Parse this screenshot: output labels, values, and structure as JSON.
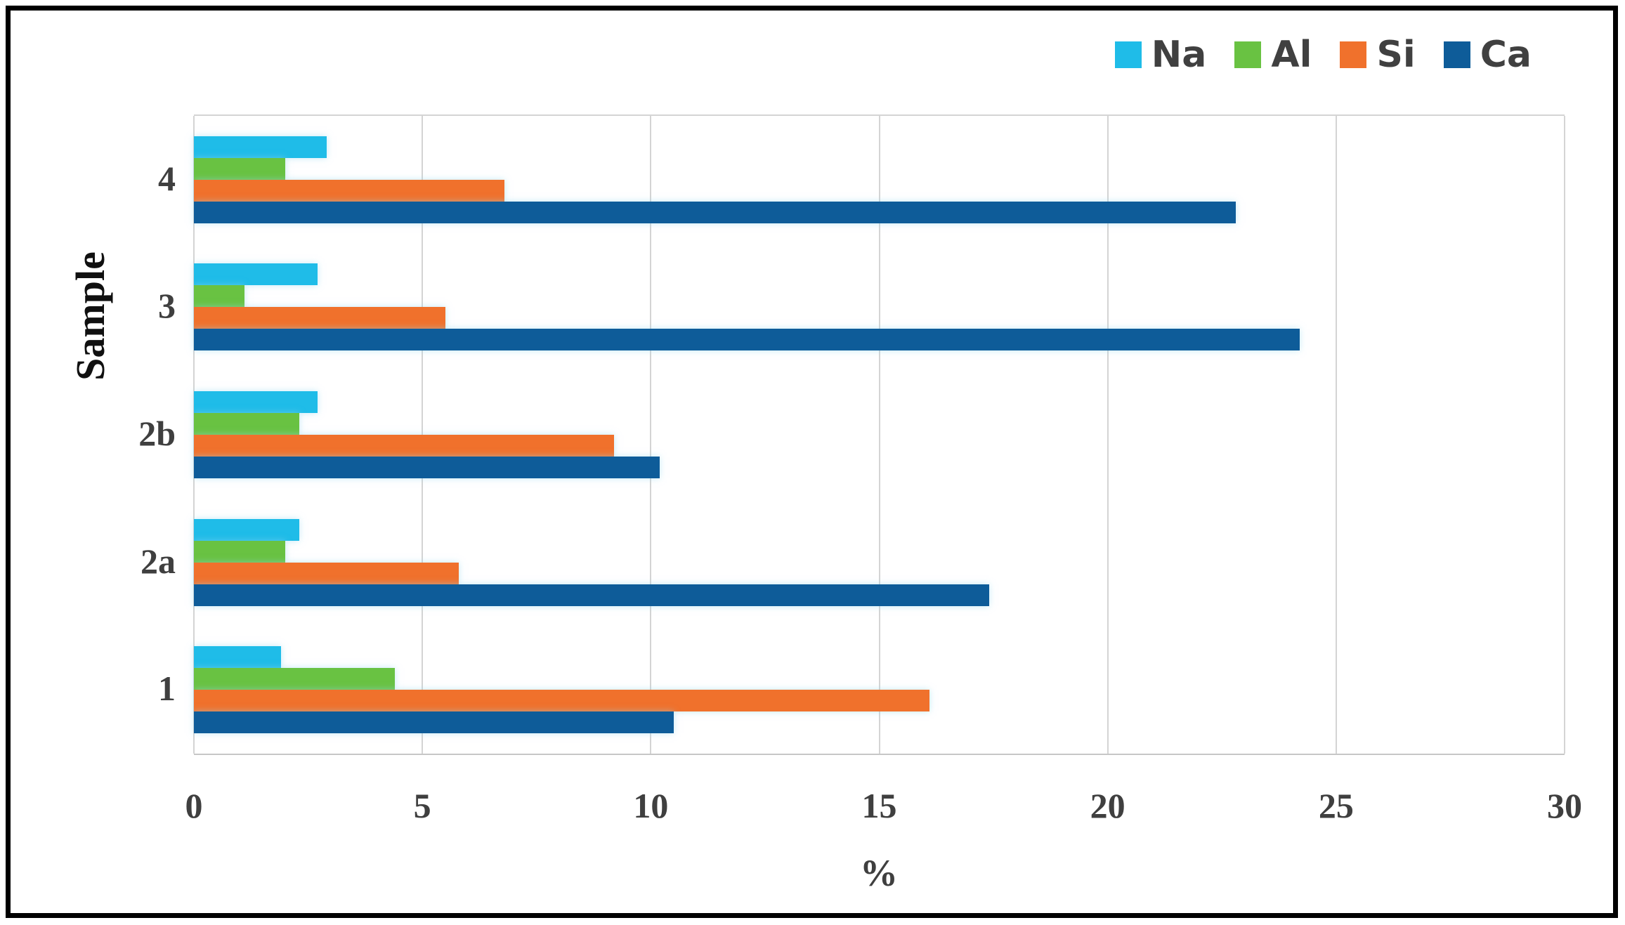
{
  "figure": {
    "background": "#ffffff",
    "border_color": "#000000"
  },
  "colors": {
    "grid": "#d4d4d4",
    "axis_line": "#c6c6c6",
    "tick_text": "#3f3f3f",
    "legend_text": "#404040",
    "ylabel_text": "#101010"
  },
  "chart_data": {
    "type": "bar",
    "orientation": "horizontal",
    "title": "",
    "xlabel": "%",
    "ylabel": "Sample",
    "xlim": [
      0,
      30
    ],
    "xticks": [
      0,
      5,
      10,
      15,
      20,
      25,
      30
    ],
    "grid": "vertical gridlines every 5",
    "legend_position": "top-right",
    "categories": [
      "4",
      "3",
      "2b",
      "2a",
      "1"
    ],
    "series_order_top_to_bottom": [
      "Na",
      "Al",
      "Si",
      "Ca"
    ],
    "series": [
      {
        "name": "Na",
        "color": "#1fbce8",
        "values": [
          2.9,
          2.7,
          2.7,
          2.3,
          1.9
        ]
      },
      {
        "name": "Al",
        "color": "#69c242",
        "values": [
          2.0,
          1.1,
          2.3,
          2.0,
          4.4
        ]
      },
      {
        "name": "Si",
        "color": "#f0712c",
        "values": [
          6.8,
          5.5,
          9.2,
          5.8,
          16.1
        ]
      },
      {
        "name": "Ca",
        "color": "#0e5c99",
        "values": [
          22.8,
          24.2,
          10.2,
          17.4,
          10.5
        ]
      }
    ]
  }
}
